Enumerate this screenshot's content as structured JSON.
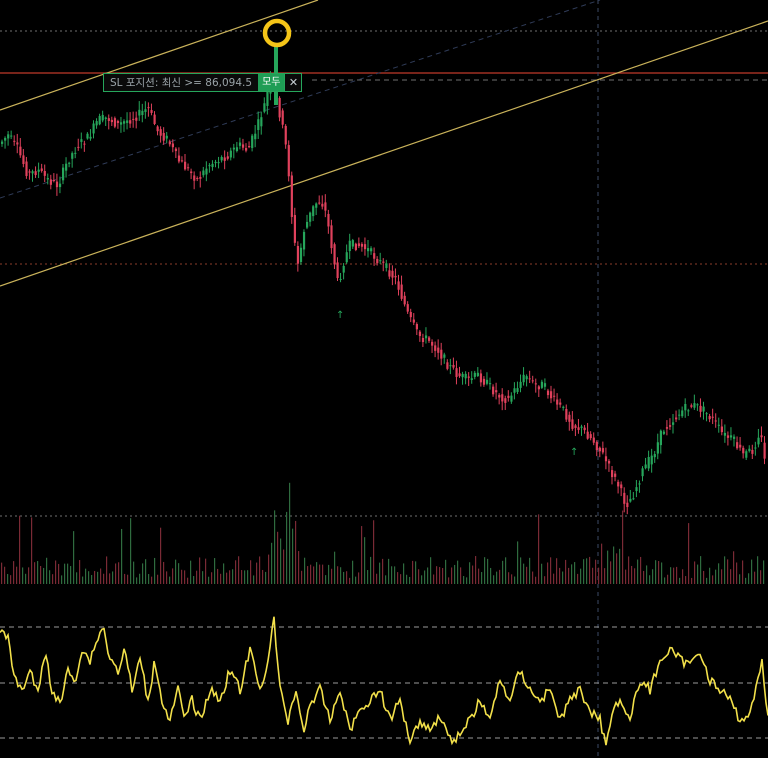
{
  "order_line": {
    "text": "SL 포지션: 최신 >= 86,094.5",
    "button_label": "모두",
    "close_glyph": "✕"
  },
  "colors": {
    "up": "#26a65b",
    "down": "#e0415c",
    "oscillator": "#f2e04a",
    "trendline": "#c9b25a",
    "stop_line": "#c0392b",
    "dotted_grid": "#6f6f6f",
    "marker_ring": "#f5c518"
  },
  "icons": [
    "close-icon",
    "highlight-ring-icon",
    "up-arrow-marker-icon"
  ],
  "chart_data": {
    "type": "candlestick",
    "panels": [
      "price",
      "volume",
      "oscillator"
    ],
    "grid": false,
    "legend": "none",
    "price_trend": [
      [
        0,
        145
      ],
      [
        10,
        135
      ],
      [
        20,
        150
      ],
      [
        30,
        175
      ],
      [
        40,
        170
      ],
      [
        50,
        180
      ],
      [
        60,
        185
      ],
      [
        70,
        160
      ],
      [
        80,
        145
      ],
      [
        90,
        138
      ],
      [
        100,
        120
      ],
      [
        110,
        118
      ],
      [
        120,
        125
      ],
      [
        130,
        120
      ],
      [
        140,
        115
      ],
      [
        150,
        108
      ],
      [
        160,
        132
      ],
      [
        170,
        140
      ],
      [
        180,
        160
      ],
      [
        190,
        170
      ],
      [
        200,
        180
      ],
      [
        210,
        165
      ],
      [
        220,
        160
      ],
      [
        230,
        155
      ],
      [
        240,
        145
      ],
      [
        250,
        150
      ],
      [
        260,
        125
      ],
      [
        268,
        100
      ],
      [
        272,
        80
      ],
      [
        278,
        95
      ],
      [
        285,
        130
      ],
      [
        290,
        160
      ],
      [
        292,
        195
      ],
      [
        296,
        240
      ],
      [
        300,
        265
      ],
      [
        306,
        230
      ],
      [
        314,
        210
      ],
      [
        320,
        200
      ],
      [
        326,
        205
      ],
      [
        330,
        225
      ],
      [
        336,
        260
      ],
      [
        340,
        285
      ],
      [
        346,
        260
      ],
      [
        352,
        245
      ],
      [
        360,
        245
      ],
      [
        370,
        250
      ],
      [
        380,
        260
      ],
      [
        390,
        270
      ],
      [
        398,
        280
      ],
      [
        405,
        300
      ],
      [
        410,
        315
      ],
      [
        420,
        335
      ],
      [
        430,
        340
      ],
      [
        440,
        350
      ],
      [
        450,
        365
      ],
      [
        460,
        375
      ],
      [
        470,
        380
      ],
      [
        480,
        375
      ],
      [
        490,
        385
      ],
      [
        500,
        395
      ],
      [
        510,
        400
      ],
      [
        520,
        385
      ],
      [
        528,
        375
      ],
      [
        536,
        385
      ],
      [
        545,
        385
      ],
      [
        555,
        400
      ],
      [
        565,
        410
      ],
      [
        575,
        425
      ],
      [
        585,
        430
      ],
      [
        595,
        440
      ],
      [
        605,
        455
      ],
      [
        612,
        470
      ],
      [
        620,
        485
      ],
      [
        628,
        505
      ],
      [
        635,
        495
      ],
      [
        645,
        470
      ],
      [
        655,
        455
      ],
      [
        665,
        430
      ],
      [
        675,
        420
      ],
      [
        685,
        410
      ],
      [
        695,
        405
      ],
      [
        705,
        410
      ],
      [
        715,
        420
      ],
      [
        725,
        435
      ],
      [
        735,
        440
      ],
      [
        745,
        455
      ],
      [
        755,
        450
      ],
      [
        762,
        430
      ],
      [
        768,
        470
      ]
    ],
    "oscillator_trend": [
      [
        0,
        630
      ],
      [
        8,
        640
      ],
      [
        15,
        680
      ],
      [
        22,
        690
      ],
      [
        30,
        670
      ],
      [
        38,
        695
      ],
      [
        45,
        650
      ],
      [
        52,
        690
      ],
      [
        60,
        705
      ],
      [
        68,
        670
      ],
      [
        75,
        680
      ],
      [
        82,
        650
      ],
      [
        90,
        660
      ],
      [
        97,
        640
      ],
      [
        103,
        625
      ],
      [
        110,
        660
      ],
      [
        118,
        670
      ],
      [
        125,
        650
      ],
      [
        132,
        690
      ],
      [
        140,
        660
      ],
      [
        148,
        700
      ],
      [
        155,
        660
      ],
      [
        162,
        700
      ],
      [
        170,
        720
      ],
      [
        178,
        690
      ],
      [
        185,
        720
      ],
      [
        192,
        700
      ],
      [
        200,
        720
      ],
      [
        210,
        690
      ],
      [
        220,
        700
      ],
      [
        230,
        670
      ],
      [
        240,
        690
      ],
      [
        250,
        650
      ],
      [
        260,
        690
      ],
      [
        268,
        660
      ],
      [
        274,
        620
      ],
      [
        280,
        690
      ],
      [
        288,
        720
      ],
      [
        296,
        690
      ],
      [
        304,
        730
      ],
      [
        312,
        700
      ],
      [
        320,
        690
      ],
      [
        330,
        720
      ],
      [
        340,
        690
      ],
      [
        350,
        730
      ],
      [
        360,
        710
      ],
      [
        370,
        700
      ],
      [
        380,
        690
      ],
      [
        390,
        720
      ],
      [
        400,
        700
      ],
      [
        410,
        740
      ],
      [
        420,
        720
      ],
      [
        430,
        730
      ],
      [
        440,
        715
      ],
      [
        450,
        740
      ],
      [
        460,
        735
      ],
      [
        470,
        720
      ],
      [
        480,
        700
      ],
      [
        490,
        720
      ],
      [
        500,
        680
      ],
      [
        510,
        700
      ],
      [
        520,
        670
      ],
      [
        530,
        690
      ],
      [
        540,
        700
      ],
      [
        550,
        690
      ],
      [
        560,
        720
      ],
      [
        570,
        700
      ],
      [
        580,
        690
      ],
      [
        590,
        710
      ],
      [
        600,
        720
      ],
      [
        606,
        745
      ],
      [
        612,
        710
      ],
      [
        620,
        700
      ],
      [
        630,
        720
      ],
      [
        640,
        680
      ],
      [
        650,
        690
      ],
      [
        660,
        660
      ],
      [
        670,
        650
      ],
      [
        680,
        660
      ],
      [
        690,
        665
      ],
      [
        700,
        650
      ],
      [
        710,
        680
      ],
      [
        720,
        690
      ],
      [
        730,
        700
      ],
      [
        740,
        720
      ],
      [
        750,
        715
      ],
      [
        756,
        685
      ],
      [
        762,
        660
      ],
      [
        768,
        720
      ]
    ]
  }
}
